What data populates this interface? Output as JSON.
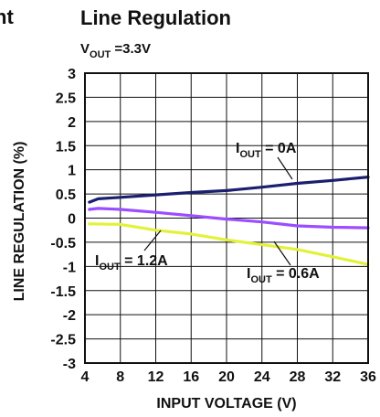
{
  "fragment_left": "nt",
  "chart_data": {
    "type": "line",
    "title": "Line Regulation",
    "subtitle": {
      "main": "V",
      "sub": "OUT",
      "tail": " =3.3V"
    },
    "xlabel": "INPUT VOLTAGE (V)",
    "ylabel": "LINE REGULATION (%)",
    "xlim": [
      4,
      36
    ],
    "ylim": [
      -3,
      3
    ],
    "x_ticks": [
      4,
      8,
      12,
      16,
      20,
      24,
      28,
      32,
      36
    ],
    "y_ticks": [
      3,
      2.5,
      2,
      1.5,
      1,
      0.5,
      0,
      -0.5,
      -1,
      -1.5,
      -2,
      -2.5,
      -3
    ],
    "grid": true,
    "series": [
      {
        "name": "IOUT = 0A",
        "color": "#1b1f6e",
        "x": [
          4.5,
          5.5,
          8,
          12,
          16,
          20,
          24,
          28,
          32,
          36
        ],
        "y": [
          0.33,
          0.4,
          0.43,
          0.48,
          0.53,
          0.57,
          0.64,
          0.72,
          0.78,
          0.85
        ]
      },
      {
        "name": "IOUT = 0.6A",
        "color": "#9b4dff",
        "x": [
          4.5,
          5.5,
          8,
          12,
          16,
          20,
          24,
          28,
          32,
          36
        ],
        "y": [
          0.18,
          0.2,
          0.18,
          0.12,
          0.05,
          -0.02,
          -0.08,
          -0.16,
          -0.19,
          -0.2
        ]
      },
      {
        "name": "IOUT = 1.2A",
        "color": "#e2f23a",
        "x": [
          4.5,
          8,
          12,
          16,
          20,
          24,
          28,
          32,
          36
        ],
        "y": [
          -0.12,
          -0.13,
          -0.25,
          -0.33,
          -0.45,
          -0.55,
          -0.65,
          -0.8,
          -0.96
        ]
      }
    ],
    "annotations": [
      {
        "main": "I",
        "sub": "OUT",
        "tail": " = 0A"
      },
      {
        "main": "I",
        "sub": "OUT",
        "tail": " = 1.2A"
      },
      {
        "main": "I",
        "sub": "OUT",
        "tail": " = 0.6A"
      }
    ]
  }
}
